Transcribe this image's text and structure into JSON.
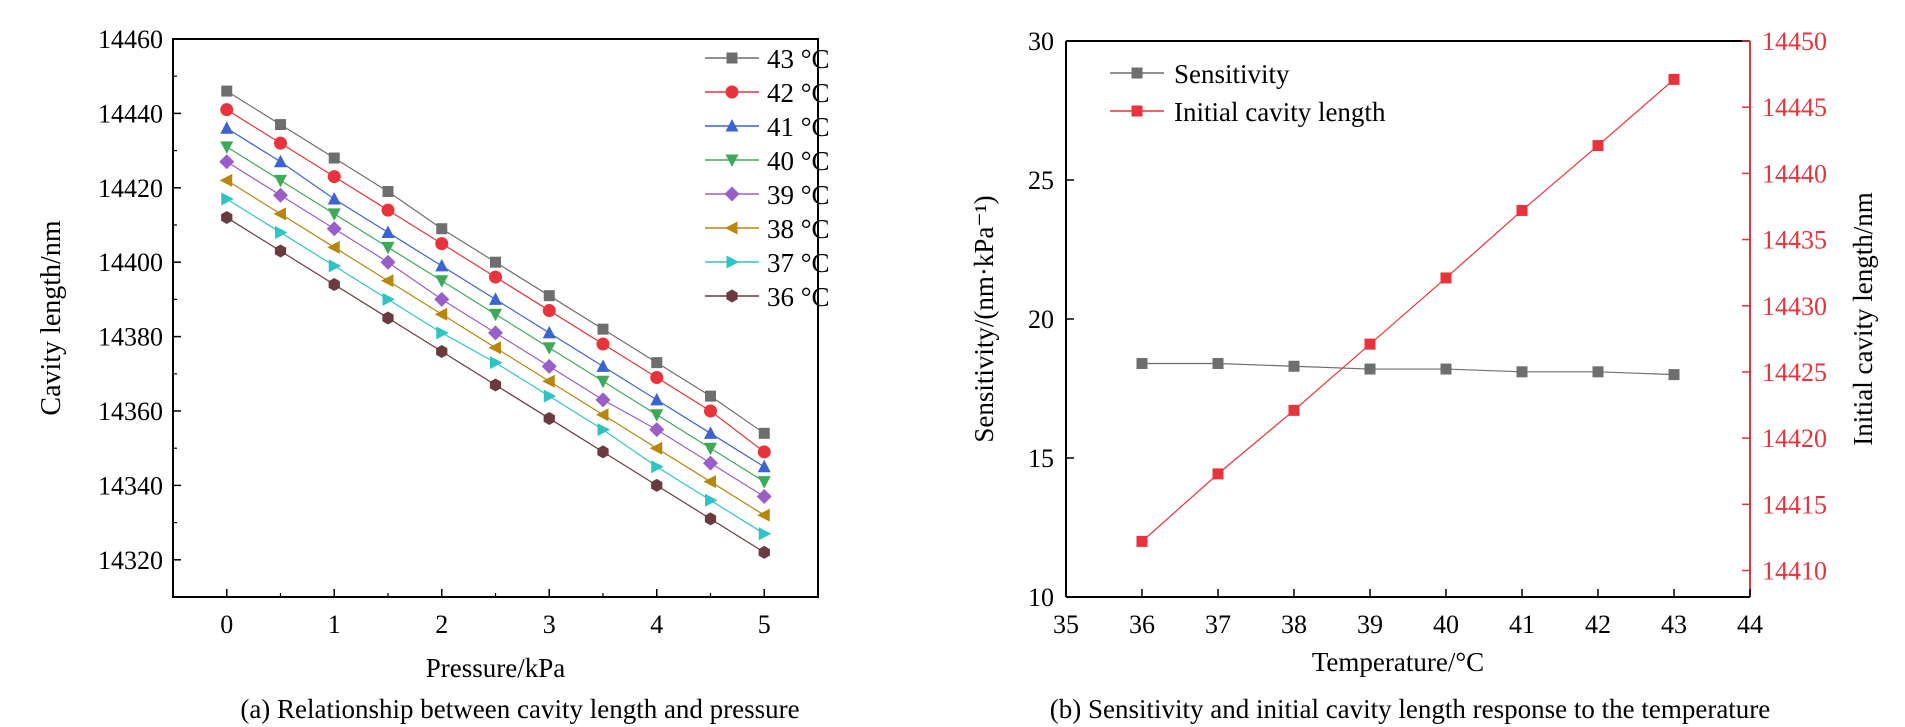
{
  "chart_data": [
    {
      "type": "line",
      "caption": "(a) Relationship between cavity length and pressure",
      "xlabel": "Pressure/kPa",
      "ylabel": "Cavity length/nm",
      "xlim": [
        -0.5,
        5.5
      ],
      "ylim": [
        14310,
        14460
      ],
      "xticks": [
        0,
        1,
        2,
        3,
        4,
        5
      ],
      "yticks": [
        14320,
        14340,
        14360,
        14380,
        14400,
        14420,
        14440,
        14460
      ],
      "legend_position": "top-right",
      "x": [
        0,
        0.5,
        1,
        1.5,
        2,
        2.5,
        3,
        3.5,
        4,
        4.5,
        5
      ],
      "series": [
        {
          "name": "43 °C",
          "color": "#6e6e6e",
          "marker": "square",
          "values": [
            14446,
            14437,
            14428,
            14419,
            14409,
            14400,
            14391,
            14382,
            14373,
            14364,
            14354
          ]
        },
        {
          "name": "42 °C",
          "color": "#e8323c",
          "marker": "circle",
          "values": [
            14441,
            14432,
            14423,
            14414,
            14405,
            14396,
            14387,
            14378,
            14369,
            14360,
            14349
          ]
        },
        {
          "name": "41 °C",
          "color": "#3a64d2",
          "marker": "triangle-up",
          "values": [
            14436,
            14427,
            14417,
            14408,
            14399,
            14390,
            14381,
            14372,
            14363,
            14354,
            14345
          ]
        },
        {
          "name": "40 °C",
          "color": "#3fa95a",
          "marker": "triangle-down",
          "values": [
            14431,
            14422,
            14413,
            14404,
            14395,
            14386,
            14377,
            14368,
            14359,
            14350,
            14341
          ]
        },
        {
          "name": "39 °C",
          "color": "#9a5ec9",
          "marker": "diamond",
          "values": [
            14427,
            14418,
            14409,
            14400,
            14390,
            14381,
            14372,
            14363,
            14355,
            14346,
            14337
          ]
        },
        {
          "name": "38 °C",
          "color": "#b8860b",
          "marker": "triangle-left",
          "values": [
            14422,
            14413,
            14404,
            14395,
            14386,
            14377,
            14368,
            14359,
            14350,
            14341,
            14332
          ]
        },
        {
          "name": "37 °C",
          "color": "#2ec4c4",
          "marker": "triangle-right",
          "values": [
            14417,
            14408,
            14399,
            14390,
            14381,
            14373,
            14364,
            14355,
            14345,
            14336,
            14327
          ]
        },
        {
          "name": "36 °C",
          "color": "#6b3a3e",
          "marker": "hexagon",
          "values": [
            14412,
            14403,
            14394,
            14385,
            14376,
            14367,
            14358,
            14349,
            14340,
            14331,
            14322
          ]
        }
      ]
    },
    {
      "type": "line",
      "caption": "(b) Sensitivity and initial cavity length response to the temperature",
      "xlabel": "Temperature/°C",
      "ylabel_left": "Sensitivity/(nm·kPa⁻¹)",
      "ylabel_right": "Initial cavity length/nm",
      "xlim": [
        35,
        44
      ],
      "ylim_left": [
        10,
        30
      ],
      "ylim_right": [
        14408,
        14450
      ],
      "xticks": [
        35,
        36,
        37,
        38,
        39,
        40,
        41,
        42,
        43,
        44
      ],
      "yticks_left": [
        10,
        15,
        20,
        25,
        30
      ],
      "yticks_right": [
        14410,
        14415,
        14420,
        14425,
        14430,
        14435,
        14440,
        14445,
        14450
      ],
      "legend_position": "top-left",
      "x": [
        36,
        37,
        38,
        39,
        40,
        41,
        42,
        43
      ],
      "series": [
        {
          "name": "Sensitivity",
          "axis": "left",
          "color": "#6e6e6e",
          "marker": "square",
          "values": [
            18.4,
            18.4,
            18.3,
            18.2,
            18.2,
            18.1,
            18.1,
            18.0
          ]
        },
        {
          "name": "Initial cavity length",
          "axis": "right",
          "color": "#e8323c",
          "marker": "square",
          "values": [
            14412.2,
            14417.3,
            14422.1,
            14427.1,
            14432.1,
            14437.2,
            14442.1,
            14447.1
          ]
        }
      ]
    }
  ]
}
